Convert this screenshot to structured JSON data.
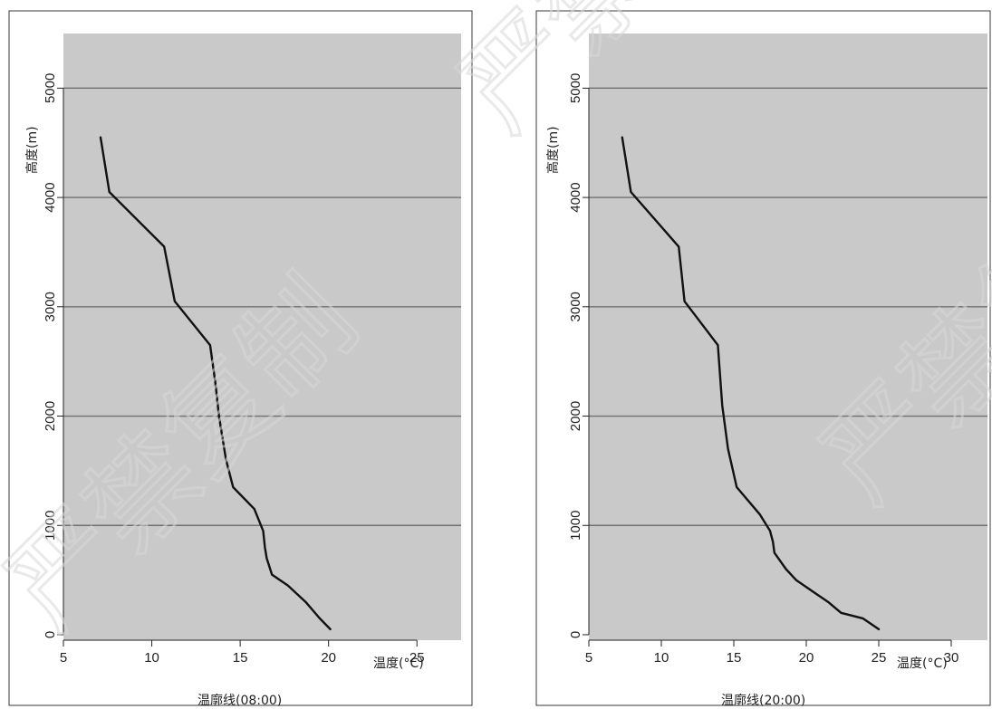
{
  "chart_data": [
    {
      "type": "line",
      "title": "温廓线(08:00)",
      "xlabel": "温度(°C)",
      "ylabel": "高度(m)",
      "xlim": [
        5,
        27.5
      ],
      "ylim": [
        -50,
        5500
      ],
      "xticks": [
        5,
        10,
        15,
        20,
        25
      ],
      "yticks": [
        0,
        1000,
        2000,
        3000,
        4000,
        5000
      ],
      "grid": "horizontal",
      "series": [
        {
          "x": [
            20.1,
            19.5,
            18.7,
            17.7,
            16.8,
            16.5,
            16.4,
            16.3,
            15.8,
            14.6,
            14.2,
            13.8,
            13.6,
            13.3,
            11.3,
            11.0,
            10.7,
            7.6,
            7.1
          ],
          "y": [
            50,
            150,
            300,
            450,
            550,
            700,
            800,
            950,
            1150,
            1350,
            1600,
            2000,
            2300,
            2650,
            3050,
            3300,
            3550,
            4050,
            4550
          ]
        }
      ]
    },
    {
      "type": "line",
      "title": "温廓线(20:00)",
      "xlabel": "温度(°C)",
      "ylabel": "高度(m)",
      "xlim": [
        5,
        32.5
      ],
      "ylim": [
        -50,
        5500
      ],
      "xticks": [
        5,
        10,
        15,
        20,
        25,
        30
      ],
      "yticks": [
        0,
        1000,
        2000,
        3000,
        4000,
        5000
      ],
      "grid": "horizontal",
      "series": [
        {
          "x": [
            25.0,
            23.9,
            22.4,
            21.5,
            20.4,
            19.3,
            18.6,
            17.8,
            17.7,
            17.5,
            16.8,
            15.2,
            14.6,
            14.2,
            13.9,
            11.6,
            11.2,
            7.9,
            7.3
          ],
          "y": [
            50,
            150,
            200,
            300,
            400,
            500,
            600,
            750,
            850,
            950,
            1100,
            1350,
            1700,
            2100,
            2650,
            3050,
            3550,
            4050,
            4550
          ]
        }
      ]
    }
  ],
  "watermark": "严禁复制"
}
